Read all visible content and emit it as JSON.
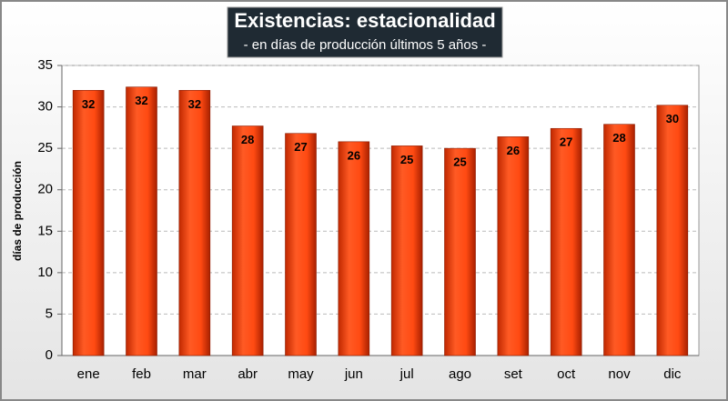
{
  "chart_data": {
    "type": "bar",
    "title": "Existencias: estacionalidad",
    "subtitle": "- en días de producción últimos 5 años -",
    "y_label": "días de producción",
    "categories": [
      "ene",
      "feb",
      "mar",
      "abr",
      "may",
      "jun",
      "jul",
      "ago",
      "set",
      "oct",
      "nov",
      "dic"
    ],
    "values": [
      32.0,
      32.4,
      32.0,
      27.7,
      26.8,
      25.8,
      25.3,
      25.0,
      26.4,
      27.4,
      27.9,
      30.2
    ],
    "value_labels": [
      "32",
      "32",
      "32",
      "28",
      "27",
      "26",
      "25",
      "25",
      "26",
      "27",
      "28",
      "30"
    ],
    "color": "#ff4010",
    "ylim": [
      0,
      35
    ],
    "yticks": [
      0,
      5,
      10,
      15,
      20,
      25,
      30,
      35
    ],
    "grid": true
  }
}
